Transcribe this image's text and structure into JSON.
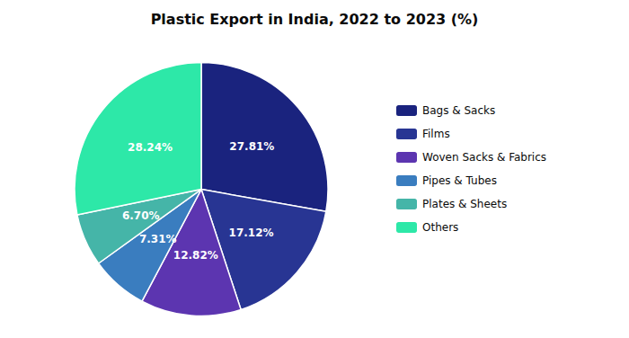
{
  "chart_data": {
    "type": "pie",
    "title": "Plastic Export in India, 2022 to 2023 (%)",
    "categories": [
      "Bags & Sacks",
      "Films",
      "Woven Sacks & Fabrics",
      "Pipes & Tubes",
      "Plates & Sheets",
      "Others"
    ],
    "values": [
      27.81,
      17.12,
      12.82,
      7.31,
      6.7,
      28.24
    ],
    "value_labels": [
      "27.81%",
      "17.12%",
      "12.82%",
      "7.31%",
      "6.70%",
      "28.24%"
    ],
    "colors": [
      "#1a237e",
      "#283593",
      "#5c35b0",
      "#3a7dbf",
      "#45b5a8",
      "#2de8a8"
    ],
    "data_labels": true,
    "legend": "right"
  }
}
